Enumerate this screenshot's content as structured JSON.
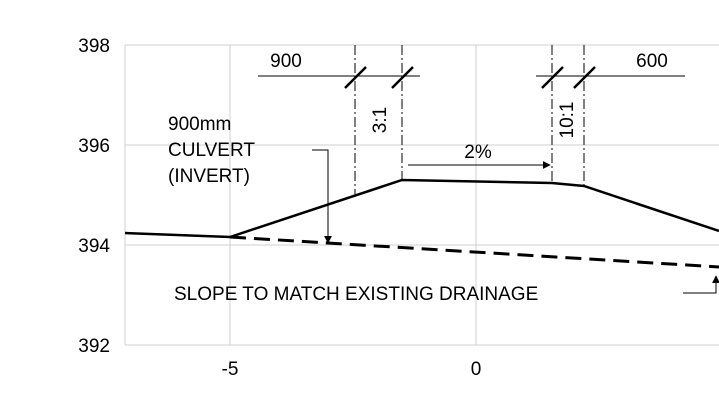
{
  "axes": {
    "y_ticks": [
      "398",
      "396",
      "394",
      "392"
    ],
    "x_ticks": [
      "-5",
      "0"
    ]
  },
  "dimensions": {
    "left_width": "900",
    "right_width": "600"
  },
  "slopes": {
    "left_side": "3:1",
    "right_side": "10:1",
    "crown": "2%"
  },
  "callouts": {
    "culvert_line1": "900mm",
    "culvert_line2": "CULVERT",
    "culvert_line3": "(INVERT)",
    "drainage": "SLOPE TO MATCH EXISTING DRAINAGE"
  }
}
